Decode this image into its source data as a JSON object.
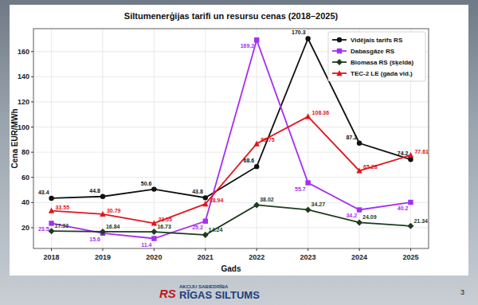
{
  "chart_data": {
    "type": "line",
    "title": "Siltumenerģijas tarifi un resursu cenas (2018–2025)",
    "x_label": "Gads",
    "y_label": "Cena EUR/MWh",
    "x": [
      2018,
      2019,
      2020,
      2021,
      2022,
      2023,
      2024,
      2025
    ],
    "xlim": [
      2017.65,
      2025.35
    ],
    "xticks": [
      2018,
      2019,
      2020,
      2021,
      2022,
      2023,
      2024,
      2025
    ],
    "ylim": [
      3.5,
      178.2
    ],
    "yticks": [
      20,
      40,
      60,
      80,
      100,
      120,
      140,
      160
    ],
    "grid": true,
    "legend": "upper right",
    "data_labels": true,
    "series": [
      {
        "name": "Vidējais tarifs RS",
        "color": "#111111",
        "marker": "circle",
        "values": [
          43.4,
          44.8,
          50.6,
          43.8,
          68.6,
          170.3,
          87.2,
          74.2
        ]
      },
      {
        "name": "Dabasgāze RS",
        "color": "#a52ff0",
        "marker": "square",
        "values": [
          23.5,
          15.6,
          11.4,
          25.2,
          169.2,
          55.7,
          34.2,
          40.2
        ]
      },
      {
        "name": "Biomasa RS (šķelda)",
        "color": "#1e3b1e",
        "marker": "diamond",
        "values": [
          17.33,
          16.84,
          16.73,
          14.24,
          38.02,
          34.27,
          24.09,
          21.34
        ]
      },
      {
        "name": "TEC-2 LE (gada vid.)",
        "color": "#e3141c",
        "marker": "triangle",
        "values": [
          33.55,
          30.79,
          23.55,
          38.94,
          86.75,
          108.36,
          65.28,
          77.61
        ]
      }
    ]
  },
  "footer": {
    "company_type": "AKCIJU SABIEDRĪBA",
    "company": "RĪGAS SILTUMS",
    "logo": "RS",
    "page": "3"
  }
}
